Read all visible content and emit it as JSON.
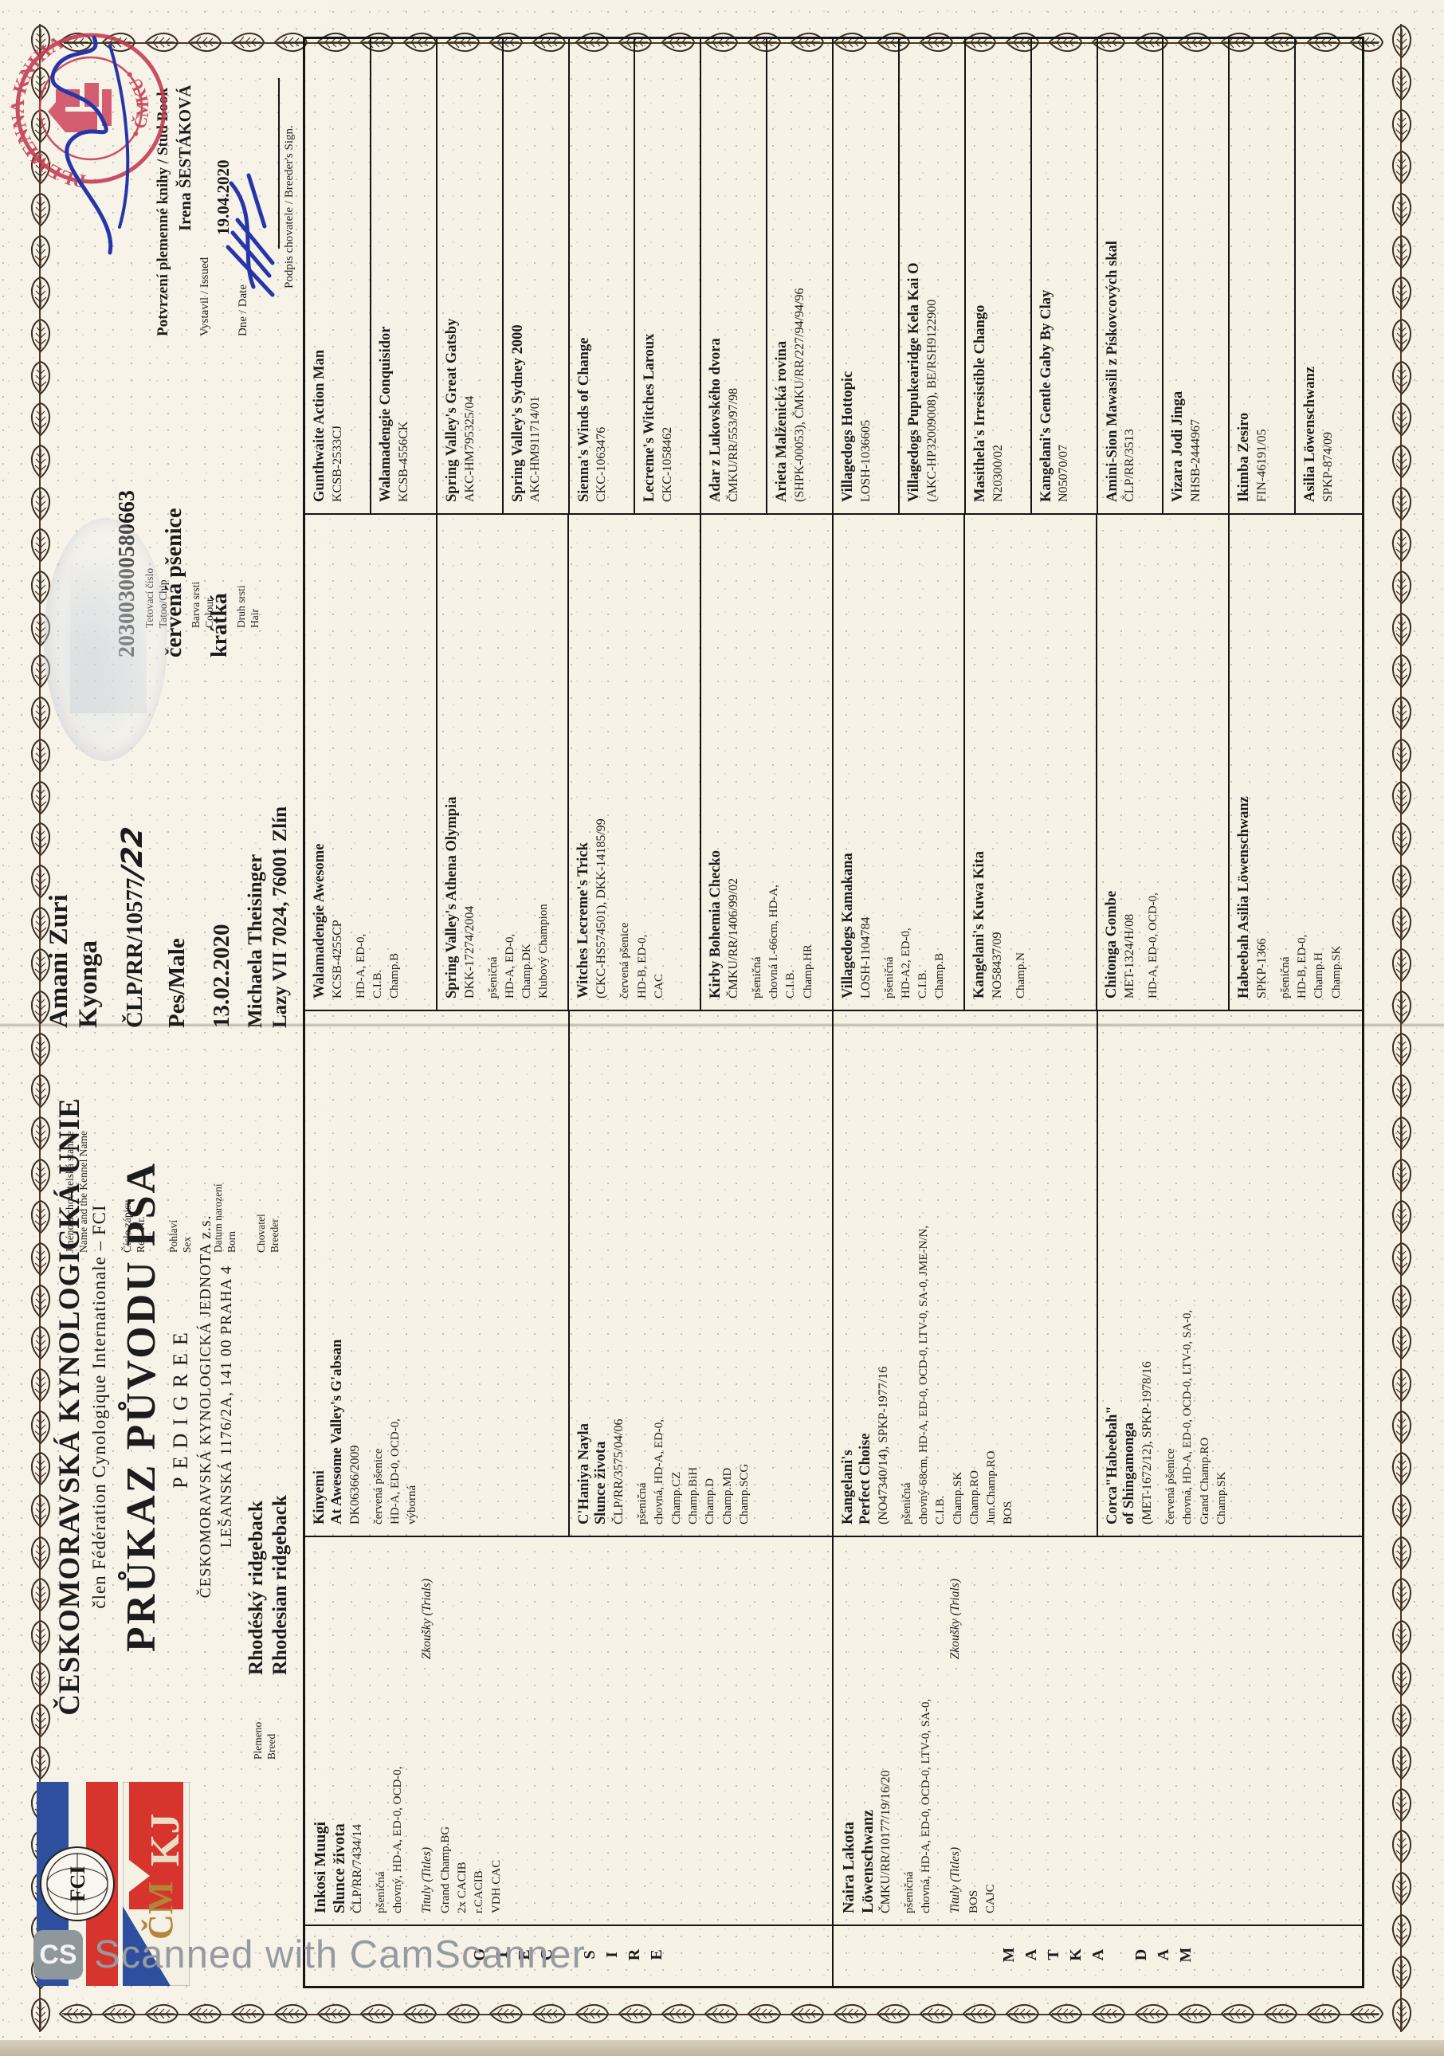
{
  "header": {
    "org": "ČESKOMORAVSKÁ KYNOLOGICKÁ UNIE",
    "member_line": "člen Fédération Cynologique Internationale – FCI",
    "title": "PRŮKAZ PŮVODU PSA",
    "subtitle": "PEDIGREE",
    "org2": "ČESKOMORAVSKÁ KYNOLOGICKÁ JEDNOTA z.s.",
    "address": "LEŠANSKÁ 1176/2A, 141 00 PRAHA 4",
    "fci_logo": "FCI",
    "fci_ring": "FEDERATION CYNOLOGIQUE INTERNATIONALE",
    "cmkj_logo": "ČMKJ"
  },
  "breed": {
    "label_cs": "Plemeno",
    "label_en": "Breed",
    "value_cs": "Rhodéský ridgeback",
    "value_en": "Rhodesian ridgeback"
  },
  "dog": {
    "name_line1": "Amani Zuri",
    "name_line2": "Kyonga",
    "reg_printed": "ČLP/RR/10577",
    "reg_handwritten": "/22",
    "tattoo": "203003000580663",
    "sex": "Pes/Male",
    "colour": "červená pšenice",
    "coat": "krátká",
    "born": "13.02.2020",
    "breeder_line1": "Michaela Theisinger",
    "breeder_line2": "Lazy VII 7024, 76001 Zlín"
  },
  "labels": {
    "name_cs": "Jméno a chovatelská stanice",
    "name_en": "Name and the Kennel Name",
    "reg_cs": "Číslo zápisu",
    "reg_en": "Reg. Nr.",
    "sex_cs": "Pohlaví",
    "sex_en": "Sex",
    "born_cs": "Datum narození",
    "born_en": "Born",
    "breeder_cs": "Chovatel",
    "breeder_en": "Breeder",
    "tattoo_cs": "Tetovací číslo",
    "tattoo_en": "Tatoo/Chip",
    "colour_cs": "Barva srsti",
    "colour_en": "Colour",
    "coat_cs": "Druh srsti",
    "coat_en": "Hair"
  },
  "studbook": {
    "heading": "Potvrzení plemenné knihy / Stud Book",
    "issued_by": "Irena ŠESTÁKOVÁ",
    "issued_label": "Vystavil / Issued",
    "date": "19.04.2020",
    "date_label": "Dne / Date",
    "sign_label": "Podpis chovatele / Breeder's Sign.",
    "stamp_text_top": "PLEMENNÁ KNIHA",
    "stamp_text_bottom": "• ČMKU •"
  },
  "pedigree": {
    "sire_label": "OTEC",
    "sire_label_en": "SIRE",
    "dam_label": "MATKA",
    "dam_label_en": "DAM",
    "parents": [
      {
        "name": [
          "Inkosi Muugi",
          "Slunce života"
        ],
        "reg": "ČLP/RR/7434/14",
        "details": [
          "pšeničná",
          "chovný, HD-A, ED-0, OCD-0,"
        ],
        "titles_label": "Tituly (Titles)",
        "trials_label": "Zkoušky (Trials)",
        "titles": [
          "Grand Champ.BG",
          "2x CACIB",
          "r.CACIB",
          "VDH CAC"
        ]
      },
      {
        "name": [
          "Naira Lakota",
          "Löwenschwanz"
        ],
        "reg": "ČMKU/RR/10177/19/16/20",
        "details": [
          "pšeničná",
          "chovná, HD-A, ED-0, OCD-0, LTV-0, SA-0,"
        ],
        "titles_label": "Tituly (Titles)",
        "trials_label": "Zkoušky (Trials)",
        "titles": [
          "BOS",
          "CAJC"
        ]
      }
    ],
    "grandparents": [
      {
        "name": [
          "Kinyemi",
          "At Awesome Valley's G'absan"
        ],
        "reg": "DK06366/2009",
        "details": [
          "červená pšenice",
          "HD-A, ED-0, OCD-0,",
          "výborná"
        ]
      },
      {
        "name": [
          "C'Haniya Nayla",
          "Slunce života"
        ],
        "reg": "ČLP/RR/3575/04/06",
        "details": [
          "pšeničná",
          "chovná, HD-A, ED-0,",
          "Champ.CZ",
          "Champ.BiH",
          "Champ.D",
          "Champ.MD",
          "Champ.SCG"
        ]
      },
      {
        "name": [
          "Kangelani's",
          "Perfect Choise"
        ],
        "reg": "(NO47340/14), SPKP-1977/16",
        "details": [
          "pšeničná",
          "chovný-68cm, HD-A, ED-0, OCD-0, LTV-0, SA-0, JME-N/N,",
          "C.I.B.",
          "Champ.SK",
          "Champ.RO",
          "Jun.Champ.RO",
          "BOS"
        ]
      },
      {
        "name": [
          "Corca\"Habeebah\"",
          "of Shingamonga"
        ],
        "reg": "(MET-1672/12), SPKP-1978/16",
        "details": [
          "červená pšenice",
          "chovná, HD-A, ED-0, OCD-0, LTV-0, SA-0,",
          "Grand Champ.RO",
          "Champ.SK"
        ]
      }
    ],
    "great_grandparents": [
      {
        "name": [
          "Walamadengie Awesome"
        ],
        "reg": "KCSB-4255CP",
        "details": [
          "HD-A, ED-0,",
          "C.I.B.",
          "Champ.B"
        ]
      },
      {
        "name": [
          "Spring Valley's Athena Olympia"
        ],
        "reg": "DKK-17274/2004",
        "details": [
          "pšeničná",
          "HD-A, ED-0,",
          "Champ.DK",
          "Klubový Champion"
        ]
      },
      {
        "name": [
          "Witches Lecreme's Trick"
        ],
        "reg": "(CKC-HS574501), DKK-14185/99",
        "details": [
          "červená pšenice",
          "HD-B, ED-0,",
          "CAC"
        ]
      },
      {
        "name": [
          "Kirby Bohemia Checko"
        ],
        "reg": "ČMKU/RR/1406/99/02",
        "details": [
          "pšeničná",
          "chovná I.-66cm, HD-A,",
          "C.I.B.",
          "Champ.HR"
        ]
      },
      {
        "name": [
          "Villagedogs Kamakana"
        ],
        "reg": "LOSH-1104784",
        "details": [
          "pšeničná",
          "HD-A2, ED-0,",
          "C.I.B.",
          "Champ.B"
        ]
      },
      {
        "name": [
          "Kangelani's Kuwa Kita"
        ],
        "reg": "NO58437/09",
        "details": [
          "Champ.N"
        ]
      },
      {
        "name": [
          "Chitonga Gombe"
        ],
        "reg": "MET-1324/H/08",
        "details": [
          "HD-A, ED-0, OCD-0,"
        ]
      },
      {
        "name": [
          "Habeebah Asilia Löwenschwanz"
        ],
        "reg": "SPKP-1366",
        "details": [
          "pšeničná",
          "HD-B, ED-0,",
          "Champ.H",
          "Champ.SK"
        ]
      }
    ],
    "great_great_grandparents": [
      {
        "name": [
          "Gunthwaite Action Man"
        ],
        "reg": "KCSB-2533CJ"
      },
      {
        "name": [
          "Walamadengie Conquisidor"
        ],
        "reg": "KCSB-4556CK"
      },
      {
        "name": [
          "Spring Valley's Great Gatsby"
        ],
        "reg": "AKC-HM795325/04"
      },
      {
        "name": [
          "Spring Valley's Sydney 2000"
        ],
        "reg": "AKC-HM911714/01"
      },
      {
        "name": [
          "Sienna's Winds of Change"
        ],
        "reg": "CKC-1063476"
      },
      {
        "name": [
          "Lecreme's Witches Laroux"
        ],
        "reg": "CKC-1058462"
      },
      {
        "name": [
          "Adar z Lukovského dvora"
        ],
        "reg": "ČMKU/RR/553/97/98"
      },
      {
        "name": [
          "Arieta Malženická rovina"
        ],
        "reg": "(SHPK-00053), ČMKU/RR/227/94/94/96"
      },
      {
        "name": [
          "Villagedogs Hottopic"
        ],
        "reg": "LOSH-1036605"
      },
      {
        "name": [
          "Villagedogs Pupukearidge Kela Kai O"
        ],
        "reg": "(AKC-HP32009008), BE/RSH9122900"
      },
      {
        "name": [
          "Masithela's Irresistible Chango"
        ],
        "reg": "N20300/02"
      },
      {
        "name": [
          "Kangelani's Gentle Gaby By Clay"
        ],
        "reg": "N05070/07"
      },
      {
        "name": [
          "Amini-Sion Mawasili z Pískovcových skal"
        ],
        "reg": "ČLP/RR/3513"
      },
      {
        "name": [
          "Vizara Jodi Jinga"
        ],
        "reg": "NHSB-2444967"
      },
      {
        "name": [
          "Ikimba Zesiro"
        ],
        "reg": "FIN-46191/05"
      },
      {
        "name": [
          "Asilia Löwenschwanz"
        ],
        "reg": "SPKP-874/09"
      }
    ]
  },
  "watermark": {
    "badge": "CS",
    "text": "Scanned with CamScanner"
  }
}
